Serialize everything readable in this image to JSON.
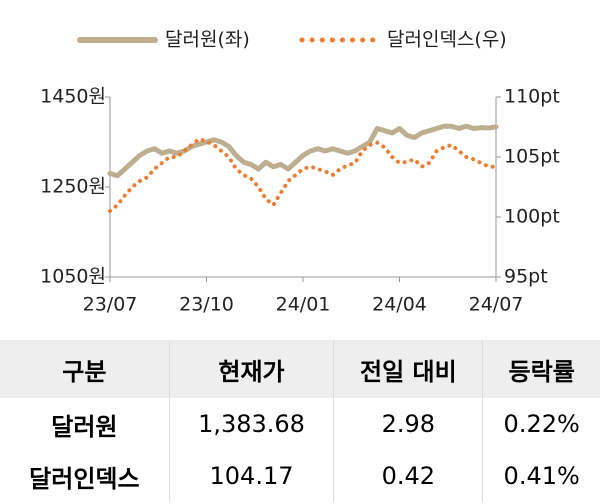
{
  "chart_data": {
    "type": "line",
    "categories": [
      "23/07",
      null,
      null,
      null,
      null,
      null,
      null,
      null,
      null,
      null,
      null,
      null,
      null,
      "23/10",
      null,
      null,
      null,
      null,
      null,
      null,
      null,
      null,
      null,
      null,
      null,
      null,
      "24/01",
      null,
      null,
      null,
      null,
      null,
      null,
      null,
      null,
      null,
      null,
      null,
      null,
      "24/04",
      null,
      null,
      null,
      null,
      null,
      null,
      null,
      null,
      null,
      null,
      null,
      null,
      "24/07"
    ],
    "series": [
      {
        "name": "달러원(좌)",
        "color": "#bcae8f",
        "style": "solid",
        "values": [
          1280,
          1275,
          1290,
          1305,
          1320,
          1330,
          1335,
          1325,
          1330,
          1325,
          1330,
          1340,
          1345,
          1350,
          1355,
          1350,
          1340,
          1320,
          1305,
          1300,
          1290,
          1305,
          1295,
          1300,
          1290,
          1305,
          1320,
          1330,
          1335,
          1330,
          1335,
          1330,
          1325,
          1330,
          1340,
          1350,
          1380,
          1375,
          1370,
          1380,
          1365,
          1360,
          1370,
          1375,
          1380,
          1385,
          1385,
          1380,
          1385,
          1380,
          1382,
          1381,
          1383.68
        ]
      },
      {
        "name": "달러인덱스(우)",
        "color": "#ed7d31",
        "style": "dotted",
        "axis": "y2",
        "values": [
          100.5,
          101,
          101.8,
          102.5,
          103,
          103.3,
          104,
          104.5,
          105,
          105,
          105.5,
          106,
          106.5,
          106.3,
          106,
          105.5,
          105,
          104,
          103.5,
          103.2,
          102.5,
          101.5,
          101,
          102,
          103,
          103.5,
          104,
          104.2,
          104,
          103.8,
          103.5,
          104,
          104.3,
          104.5,
          105.5,
          106,
          106.2,
          105.8,
          105,
          104.5,
          104.6,
          104.8,
          104.2,
          104.5,
          105.5,
          105.8,
          106,
          105.5,
          105,
          104.8,
          104.5,
          104.2,
          104.17
        ]
      }
    ],
    "ylim": [
      1050,
      1450
    ],
    "yticks": [
      {
        "value": 1050,
        "label": "1050원"
      },
      {
        "value": 1250,
        "label": "1250원"
      },
      {
        "value": 1450,
        "label": "1450원"
      }
    ],
    "y2lim": [
      95,
      110
    ],
    "y2ticks": [
      {
        "value": 95,
        "label": "95pt"
      },
      {
        "value": 100,
        "label": "100pt"
      },
      {
        "value": 105,
        "label": "105pt"
      },
      {
        "value": 110,
        "label": "110pt"
      }
    ],
    "legend": "top"
  },
  "table": {
    "headers": [
      "구분",
      "현재가",
      "전일 대비",
      "등락률"
    ],
    "rows": [
      [
        "달러원",
        "1,383.68",
        "2.98",
        "0.22%"
      ],
      [
        "달러인덱스",
        "104.17",
        "0.42",
        "0.41%"
      ]
    ]
  }
}
